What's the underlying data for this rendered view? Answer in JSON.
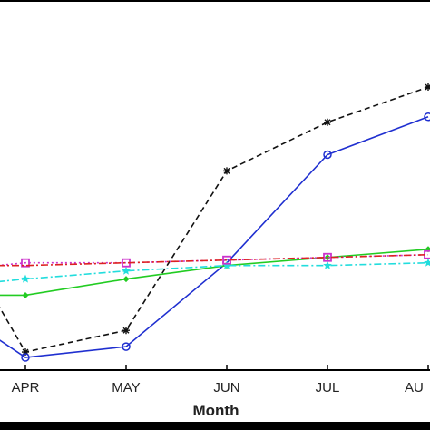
{
  "chart_data": {
    "type": "line",
    "title": "",
    "xlabel": "Month",
    "ylabel": "",
    "categories": [
      "APR",
      "MAY",
      "JUN",
      "JUL",
      "AUG"
    ],
    "visible_category_labels": [
      "APR",
      "MAY",
      "JUN",
      "JUL",
      "AU"
    ],
    "y_range": [
      0,
      100
    ],
    "grid": false,
    "legend": "none",
    "series": [
      {
        "values": [
          2,
          10,
          69,
          87,
          100
        ],
        "color": "#111111",
        "line_style": "dashed",
        "marker": "plus"
      },
      {
        "values": [
          0,
          4,
          35,
          75,
          89
        ],
        "color": "#1f2fd0",
        "line_style": "solid",
        "marker": "circle"
      },
      {
        "values": [
          23,
          29,
          34,
          37,
          40
        ],
        "color": "#22cc22",
        "line_style": "solid",
        "marker": "diamond"
      },
      {
        "values": [
          29,
          32,
          34,
          34,
          35
        ],
        "color": "#22dddd",
        "line_style": "dash-dot",
        "marker": "star"
      },
      {
        "values": [
          35,
          35,
          36,
          37,
          38
        ],
        "color": "#cc33cc",
        "line_style": "dotted",
        "marker": "square"
      },
      {
        "values": [
          34,
          35,
          36,
          37,
          38
        ],
        "color": "#dd2222",
        "line_style": "dash-dot",
        "marker": "none"
      }
    ],
    "leading_points": [
      {
        "series": 0,
        "value": 20
      },
      {
        "series": 1,
        "value": 7
      },
      {
        "series": 2,
        "value": 23
      },
      {
        "series": 3,
        "value": 28
      },
      {
        "series": 4,
        "value": 34
      },
      {
        "series": 5,
        "value": 34
      }
    ]
  }
}
